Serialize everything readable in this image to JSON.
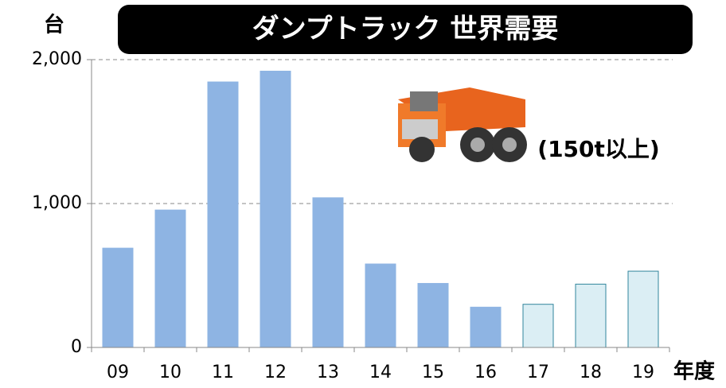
{
  "chart_data": {
    "type": "bar",
    "title": "ダンプトラック 世界需要",
    "y_unit_label": "台",
    "x_unit_label": "年度",
    "annotation": "(150t以上)",
    "categories": [
      "09",
      "10",
      "11",
      "12",
      "13",
      "14",
      "15",
      "16",
      "17",
      "18",
      "19"
    ],
    "values": [
      690,
      955,
      1845,
      1920,
      1040,
      580,
      445,
      280,
      300,
      440,
      530
    ],
    "colors": [
      "#8eb4e3",
      "#8eb4e3",
      "#8eb4e3",
      "#8eb4e3",
      "#8eb4e3",
      "#8eb4e3",
      "#8eb4e3",
      "#8eb4e3",
      "#dbeef4",
      "#dbeef4",
      "#dbeef4"
    ],
    "edgecolors": [
      "#8eb4e3",
      "#8eb4e3",
      "#8eb4e3",
      "#8eb4e3",
      "#8eb4e3",
      "#8eb4e3",
      "#8eb4e3",
      "#8eb4e3",
      "#31859c",
      "#31859c",
      "#31859c"
    ],
    "ylim": [
      0,
      2000
    ],
    "yticks": [
      0,
      {
        "value": 1000,
        "label": "1,000"
      },
      {
        "value": 2000,
        "label": "2,000"
      }
    ],
    "grid": true
  }
}
